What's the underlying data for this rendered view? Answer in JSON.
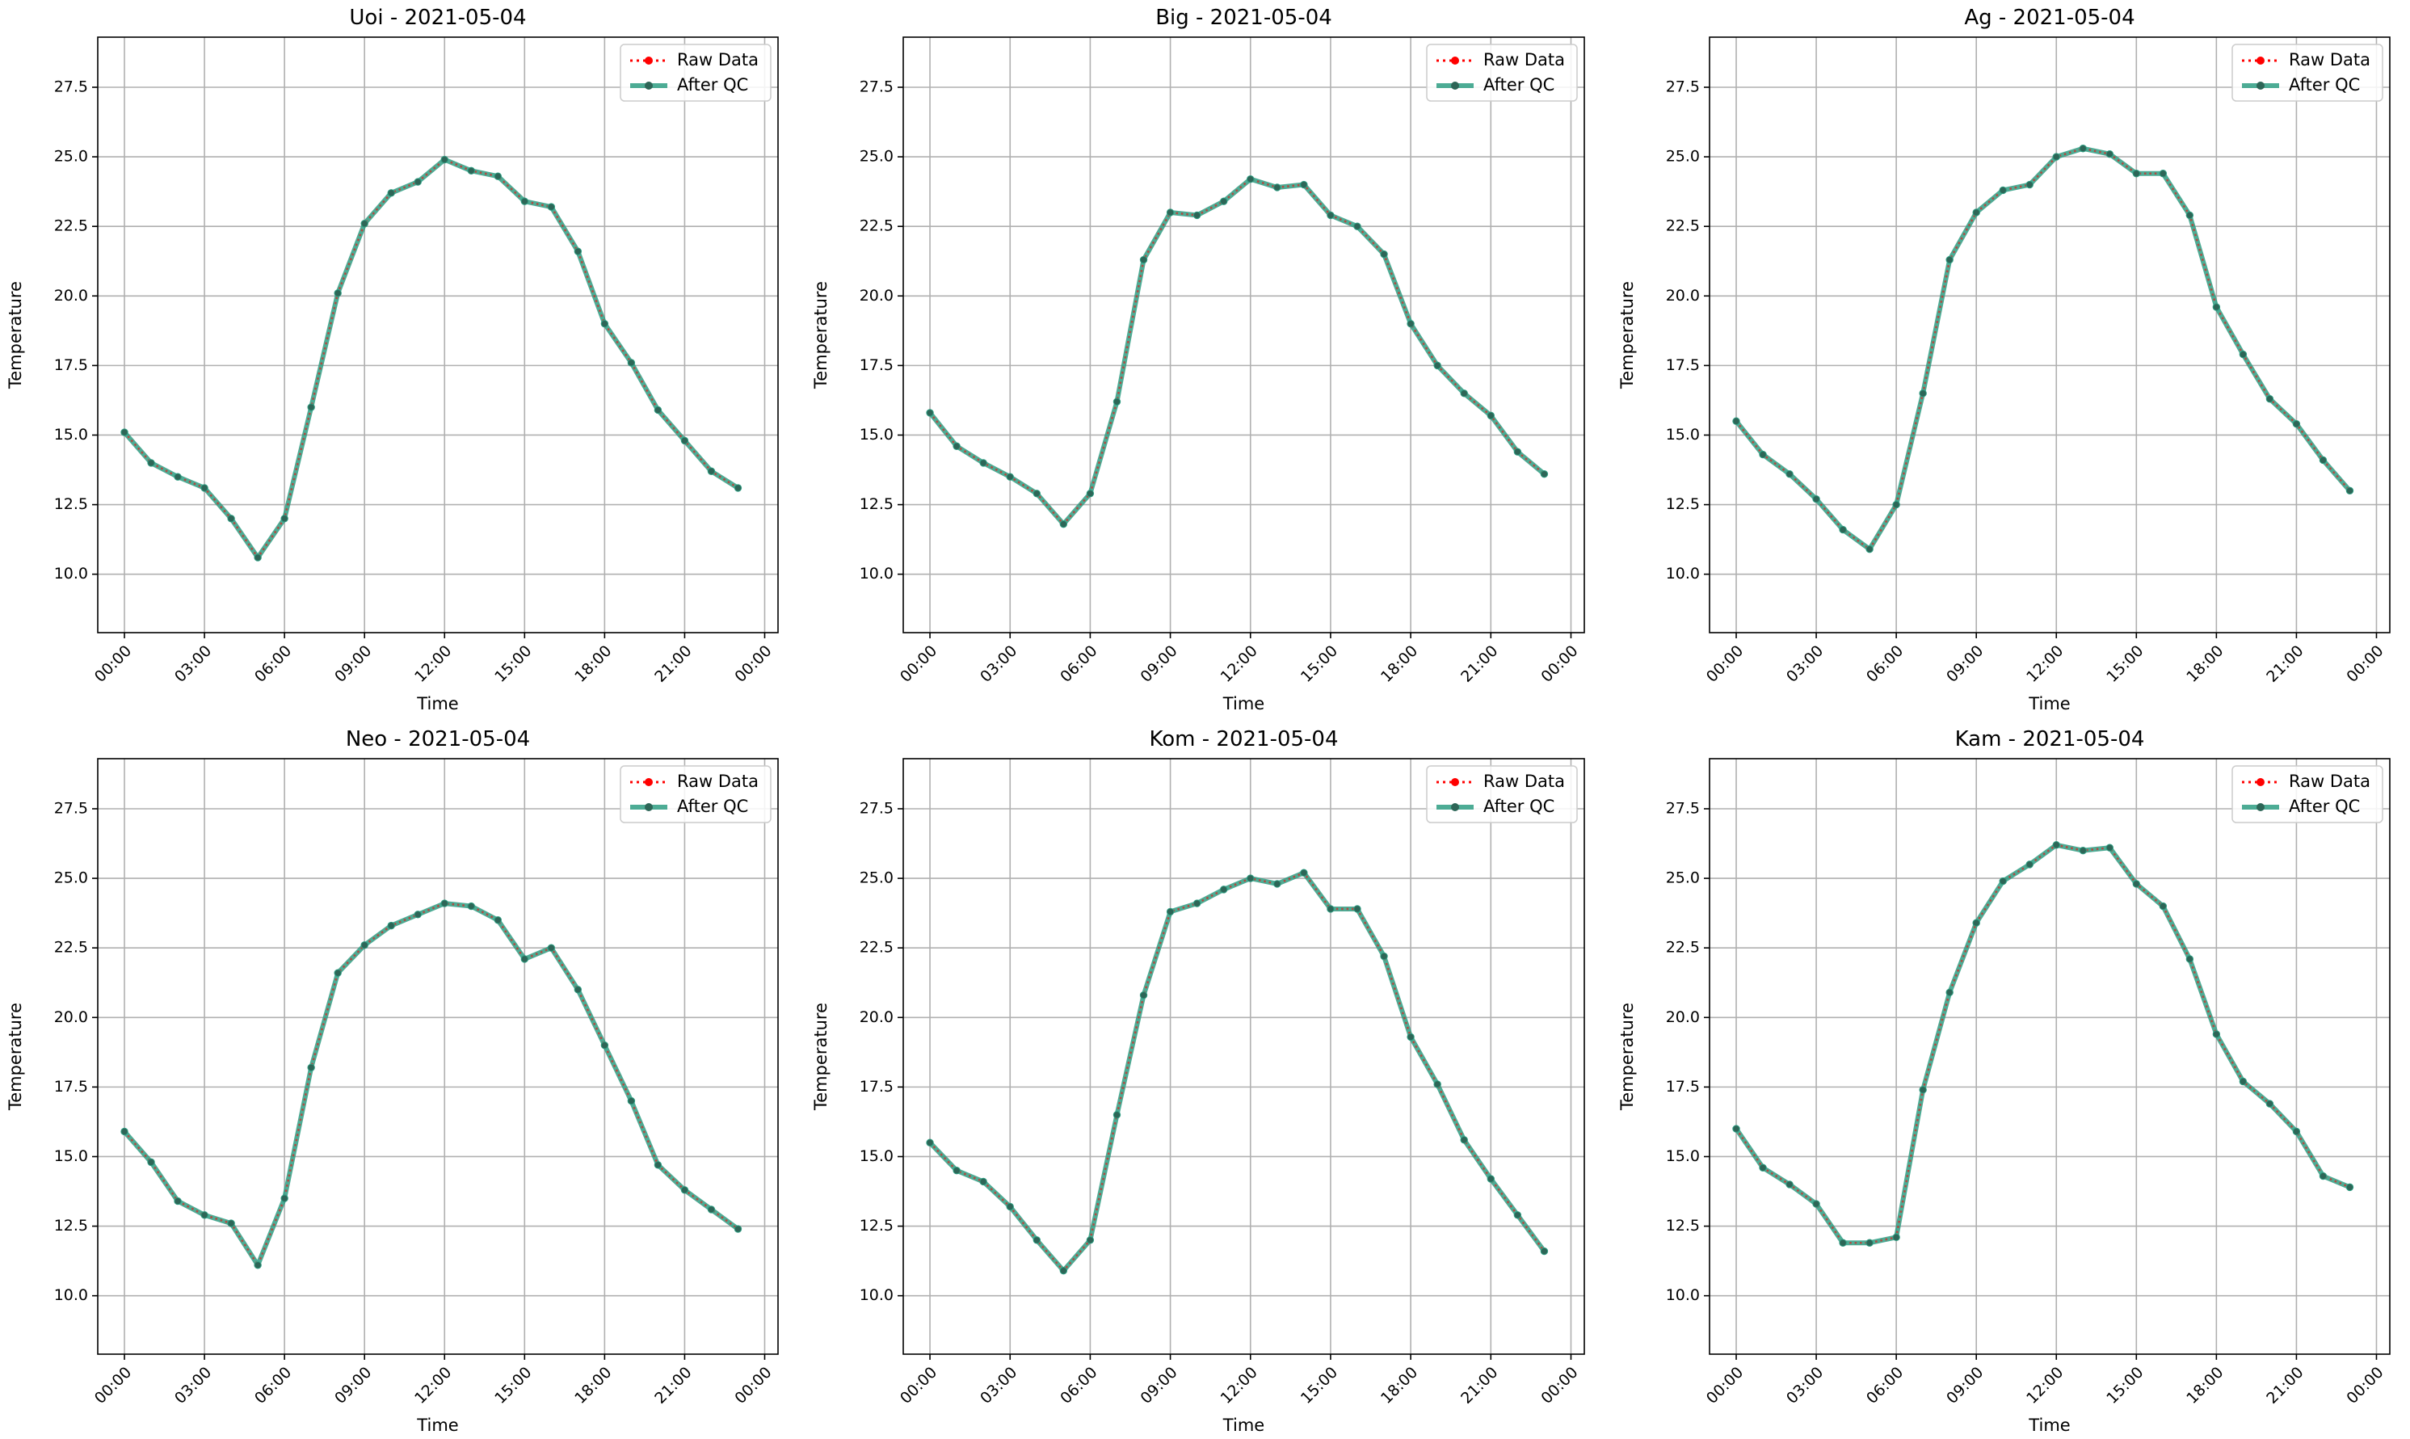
{
  "figure": {
    "xlabel": "Time",
    "ylabel": "Temperature",
    "x_ticks": [
      "00:00",
      "03:00",
      "06:00",
      "09:00",
      "12:00",
      "15:00",
      "18:00",
      "21:00",
      "00:00"
    ],
    "y_ticks": [
      "10.0",
      "12.5",
      "15.0",
      "17.5",
      "20.0",
      "22.5",
      "25.0",
      "27.5"
    ],
    "legend": {
      "raw_label": "Raw Data",
      "qc_label": "After QC",
      "placement": "upper right"
    },
    "colors": {
      "raw": "#ff0000",
      "qc": "#2e9e83",
      "marker": "#2d6657",
      "grid": "#b0b0b0"
    }
  },
  "chart_data": [
    {
      "type": "line",
      "title": "Uoi - 2021-05-04",
      "xlabel": "Time",
      "ylabel": "Temperature",
      "x": [
        "00:00",
        "01:00",
        "02:00",
        "03:00",
        "04:00",
        "05:00",
        "06:00",
        "07:00",
        "08:00",
        "09:00",
        "10:00",
        "11:00",
        "12:00",
        "13:00",
        "14:00",
        "15:00",
        "16:00",
        "17:00",
        "18:00",
        "19:00",
        "20:00",
        "21:00",
        "22:00",
        "23:00"
      ],
      "xlim": [
        -1.0,
        24.5
      ],
      "ylim": [
        7.9,
        29.3
      ],
      "grid": true,
      "legend": "upper right",
      "series": [
        {
          "name": "Raw Data",
          "values": [
            15.1,
            14.0,
            13.5,
            13.1,
            12.0,
            10.6,
            12.0,
            16.0,
            20.1,
            22.6,
            23.7,
            24.1,
            24.9,
            24.5,
            24.3,
            23.4,
            23.2,
            21.6,
            19.0,
            17.6,
            15.9,
            14.8,
            13.7,
            13.1
          ]
        },
        {
          "name": "After QC",
          "values": [
            15.1,
            14.0,
            13.5,
            13.1,
            12.0,
            10.6,
            12.0,
            16.0,
            20.1,
            22.6,
            23.7,
            24.1,
            24.9,
            24.5,
            24.3,
            23.4,
            23.2,
            21.6,
            19.0,
            17.6,
            15.9,
            14.8,
            13.7,
            13.1
          ]
        }
      ]
    },
    {
      "type": "line",
      "title": "Big - 2021-05-04",
      "xlabel": "Time",
      "ylabel": "Temperature",
      "x": [
        "00:00",
        "01:00",
        "02:00",
        "03:00",
        "04:00",
        "05:00",
        "06:00",
        "07:00",
        "08:00",
        "09:00",
        "10:00",
        "11:00",
        "12:00",
        "13:00",
        "14:00",
        "15:00",
        "16:00",
        "17:00",
        "18:00",
        "19:00",
        "20:00",
        "21:00",
        "22:00",
        "23:00"
      ],
      "xlim": [
        -1.0,
        24.5
      ],
      "ylim": [
        7.9,
        29.3
      ],
      "grid": true,
      "legend": "upper right",
      "series": [
        {
          "name": "Raw Data",
          "values": [
            15.8,
            14.6,
            14.0,
            13.5,
            12.9,
            11.8,
            12.9,
            16.2,
            21.3,
            23.0,
            22.9,
            23.4,
            24.2,
            23.9,
            24.0,
            22.9,
            22.5,
            21.5,
            19.0,
            17.5,
            16.5,
            15.7,
            14.4,
            13.6
          ]
        },
        {
          "name": "After QC",
          "values": [
            15.8,
            14.6,
            14.0,
            13.5,
            12.9,
            11.8,
            12.9,
            16.2,
            21.3,
            23.0,
            22.9,
            23.4,
            24.2,
            23.9,
            24.0,
            22.9,
            22.5,
            21.5,
            19.0,
            17.5,
            16.5,
            15.7,
            14.4,
            13.6
          ]
        }
      ]
    },
    {
      "type": "line",
      "title": "Ag - 2021-05-04",
      "xlabel": "Time",
      "ylabel": "Temperature",
      "x": [
        "00:00",
        "01:00",
        "02:00",
        "03:00",
        "04:00",
        "05:00",
        "06:00",
        "07:00",
        "08:00",
        "09:00",
        "10:00",
        "11:00",
        "12:00",
        "13:00",
        "14:00",
        "15:00",
        "16:00",
        "17:00",
        "18:00",
        "19:00",
        "20:00",
        "21:00",
        "22:00",
        "23:00"
      ],
      "xlim": [
        -1.0,
        24.5
      ],
      "ylim": [
        7.9,
        29.3
      ],
      "grid": true,
      "legend": "upper right",
      "series": [
        {
          "name": "Raw Data",
          "values": [
            15.5,
            14.3,
            13.6,
            12.7,
            11.6,
            10.9,
            12.5,
            16.5,
            21.3,
            23.0,
            23.8,
            24.0,
            25.0,
            25.3,
            25.1,
            24.4,
            24.4,
            22.9,
            19.6,
            17.9,
            16.3,
            15.4,
            14.1,
            13.0
          ]
        },
        {
          "name": "After QC",
          "values": [
            15.5,
            14.3,
            13.6,
            12.7,
            11.6,
            10.9,
            12.5,
            16.5,
            21.3,
            23.0,
            23.8,
            24.0,
            25.0,
            25.3,
            25.1,
            24.4,
            24.4,
            22.9,
            19.6,
            17.9,
            16.3,
            15.4,
            14.1,
            13.0
          ]
        }
      ]
    },
    {
      "type": "line",
      "title": "Neo - 2021-05-04",
      "xlabel": "Time",
      "ylabel": "Temperature",
      "x": [
        "00:00",
        "01:00",
        "02:00",
        "03:00",
        "04:00",
        "05:00",
        "06:00",
        "07:00",
        "08:00",
        "09:00",
        "10:00",
        "11:00",
        "12:00",
        "13:00",
        "14:00",
        "15:00",
        "16:00",
        "17:00",
        "18:00",
        "19:00",
        "20:00",
        "21:00",
        "22:00",
        "23:00"
      ],
      "xlim": [
        -1.0,
        24.5
      ],
      "ylim": [
        7.9,
        29.3
      ],
      "grid": true,
      "legend": "upper right",
      "series": [
        {
          "name": "Raw Data",
          "values": [
            15.9,
            14.8,
            13.4,
            12.9,
            12.6,
            11.1,
            13.5,
            18.2,
            21.6,
            22.6,
            23.3,
            23.7,
            24.1,
            24.0,
            23.5,
            22.1,
            22.5,
            21.0,
            19.0,
            17.0,
            14.7,
            13.8,
            13.1,
            12.4
          ]
        },
        {
          "name": "After QC",
          "values": [
            15.9,
            14.8,
            13.4,
            12.9,
            12.6,
            11.1,
            13.5,
            18.2,
            21.6,
            22.6,
            23.3,
            23.7,
            24.1,
            24.0,
            23.5,
            22.1,
            22.5,
            21.0,
            19.0,
            17.0,
            14.7,
            13.8,
            13.1,
            12.4
          ]
        }
      ]
    },
    {
      "type": "line",
      "title": "Kom - 2021-05-04",
      "xlabel": "Time",
      "ylabel": "Temperature",
      "x": [
        "00:00",
        "01:00",
        "02:00",
        "03:00",
        "04:00",
        "05:00",
        "06:00",
        "07:00",
        "08:00",
        "09:00",
        "10:00",
        "11:00",
        "12:00",
        "13:00",
        "14:00",
        "15:00",
        "16:00",
        "17:00",
        "18:00",
        "19:00",
        "20:00",
        "21:00",
        "22:00",
        "23:00"
      ],
      "xlim": [
        -1.0,
        24.5
      ],
      "ylim": [
        7.9,
        29.3
      ],
      "grid": true,
      "legend": "upper right",
      "series": [
        {
          "name": "Raw Data",
          "values": [
            15.5,
            14.5,
            14.1,
            13.2,
            12.0,
            10.9,
            12.0,
            16.5,
            20.8,
            23.8,
            24.1,
            24.6,
            25.0,
            24.8,
            25.2,
            23.9,
            23.9,
            22.2,
            19.3,
            17.6,
            15.6,
            14.2,
            12.9,
            11.6
          ]
        },
        {
          "name": "After QC",
          "values": [
            15.5,
            14.5,
            14.1,
            13.2,
            12.0,
            10.9,
            12.0,
            16.5,
            20.8,
            23.8,
            24.1,
            24.6,
            25.0,
            24.8,
            25.2,
            23.9,
            23.9,
            22.2,
            19.3,
            17.6,
            15.6,
            14.2,
            12.9,
            11.6
          ]
        }
      ]
    },
    {
      "type": "line",
      "title": "Kam - 2021-05-04",
      "xlabel": "Time",
      "ylabel": "Temperature",
      "x": [
        "00:00",
        "01:00",
        "02:00",
        "03:00",
        "04:00",
        "05:00",
        "06:00",
        "07:00",
        "08:00",
        "09:00",
        "10:00",
        "11:00",
        "12:00",
        "13:00",
        "14:00",
        "15:00",
        "16:00",
        "17:00",
        "18:00",
        "19:00",
        "20:00",
        "21:00",
        "22:00",
        "23:00"
      ],
      "xlim": [
        -1.0,
        24.5
      ],
      "ylim": [
        7.9,
        29.3
      ],
      "grid": true,
      "legend": "upper right",
      "series": [
        {
          "name": "Raw Data",
          "values": [
            16.0,
            14.6,
            14.0,
            13.3,
            11.9,
            11.9,
            12.1,
            17.4,
            20.9,
            23.4,
            24.9,
            25.5,
            26.2,
            26.0,
            26.1,
            24.8,
            24.0,
            22.1,
            19.4,
            17.7,
            16.9,
            15.9,
            14.3,
            13.9
          ]
        },
        {
          "name": "After QC",
          "values": [
            16.0,
            14.6,
            14.0,
            13.3,
            11.9,
            11.9,
            12.1,
            17.4,
            20.9,
            23.4,
            24.9,
            25.5,
            26.2,
            26.0,
            26.1,
            24.8,
            24.0,
            22.1,
            19.4,
            17.7,
            16.9,
            15.9,
            14.3,
            13.9
          ]
        }
      ]
    }
  ]
}
